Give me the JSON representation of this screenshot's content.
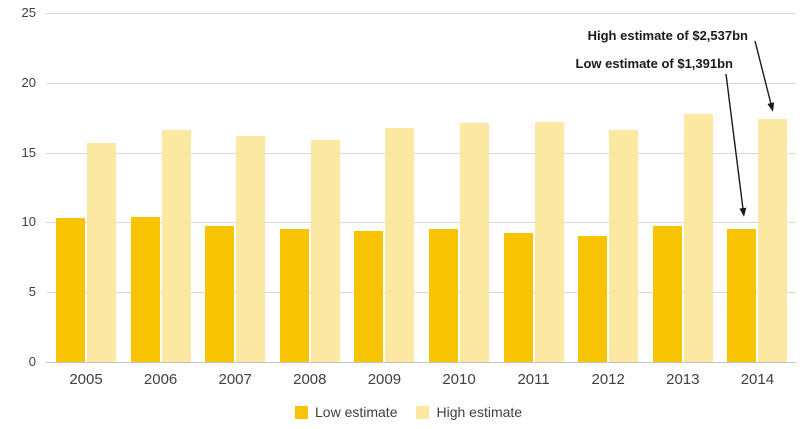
{
  "chart_data": {
    "type": "bar",
    "title": "",
    "categories": [
      "2005",
      "2006",
      "2007",
      "2008",
      "2009",
      "2010",
      "2011",
      "2012",
      "2013",
      "2014"
    ],
    "series": [
      {
        "name": "Low estimate",
        "color": "#F8C301",
        "values": [
          10.3,
          10.4,
          9.7,
          9.5,
          9.4,
          9.5,
          9.2,
          9.0,
          9.7,
          9.5
        ]
      },
      {
        "name": "High estimate",
        "color": "#FCE8A3",
        "values": [
          15.7,
          16.6,
          16.2,
          15.9,
          16.8,
          17.1,
          17.2,
          16.6,
          17.8,
          17.4
        ]
      }
    ],
    "ylim": [
      0,
      25
    ],
    "yticks": [
      0,
      5,
      10,
      15,
      20,
      25
    ],
    "grid": true,
    "legend_position": "bottom",
    "annotations": [
      {
        "text": "High estimate of $2,537bn",
        "target": "2014 High estimate bar"
      },
      {
        "text": "Low estimate of $1,391bn",
        "target": "2014 Low estimate bar"
      }
    ]
  },
  "colors": {
    "gridline": "#D9D9D9",
    "baseline": "#C3C3C3",
    "axis_text": "#404040",
    "annotation_text": "#1A1A1A"
  }
}
